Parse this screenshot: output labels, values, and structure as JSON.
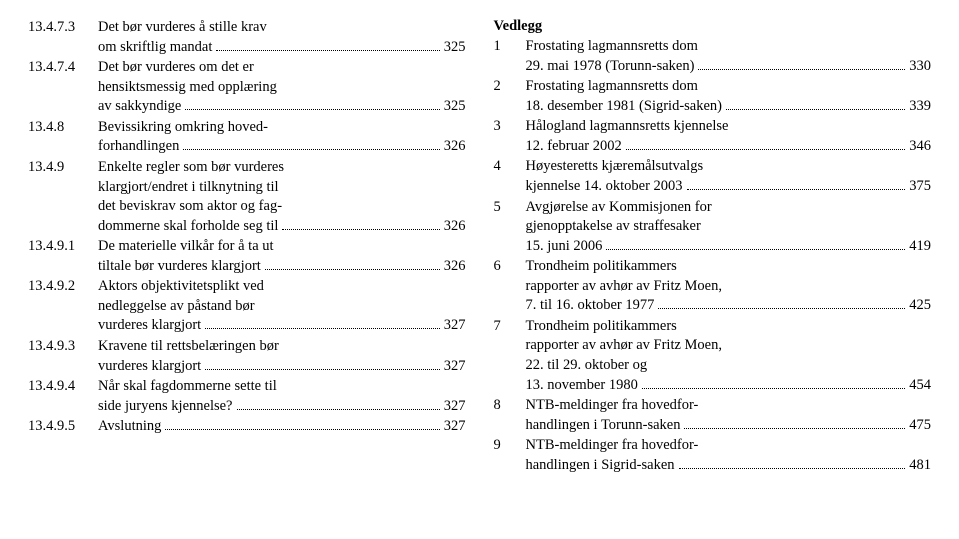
{
  "left": [
    {
      "num": "13.4.7.3",
      "lines": [
        "Det bør vurderes å stille krav",
        "om skriftlig mandat"
      ],
      "page": "325"
    },
    {
      "num": "13.4.7.4",
      "lines": [
        "Det bør vurderes om det er",
        "hensiktsmessig med opplæring",
        "av sakkyndige"
      ],
      "page": "325"
    },
    {
      "num": "13.4.8",
      "lines": [
        "Bevissikring omkring hoved-",
        "forhandlingen"
      ],
      "page": "326"
    },
    {
      "num": "13.4.9",
      "lines": [
        "Enkelte regler som bør vurderes",
        "klargjort/endret i tilknytning til",
        "det beviskrav som aktor og fag-",
        "dommerne skal forholde seg til"
      ],
      "page": "326"
    },
    {
      "num": "13.4.9.1",
      "lines": [
        "De materielle vilkår for å ta ut",
        "tiltale bør vurderes klargjort"
      ],
      "page": "326"
    },
    {
      "num": "13.4.9.2",
      "lines": [
        "Aktors objektivitetsplikt ved",
        "nedleggelse av påstand bør",
        "vurderes klargjort"
      ],
      "page": "327"
    },
    {
      "num": "13.4.9.3",
      "lines": [
        "Kravene til rettsbelæringen bør",
        "vurderes klargjort"
      ],
      "page": "327"
    },
    {
      "num": "13.4.9.4",
      "lines": [
        "Når skal fagdommerne sette til",
        "side juryens kjennelse?"
      ],
      "page": "327"
    },
    {
      "num": "13.4.9.5",
      "lines": [
        "Avslutning"
      ],
      "page": "327"
    }
  ],
  "rightHeading": "Vedlegg",
  "right": [
    {
      "num": "1",
      "lines": [
        "Frostating lagmannsretts dom",
        "29. mai 1978 (Torunn-saken)"
      ],
      "page": "330"
    },
    {
      "num": "2",
      "lines": [
        "Frostating lagmannsretts dom",
        "18. desember 1981 (Sigrid-saken)"
      ],
      "page": "339"
    },
    {
      "num": "3",
      "lines": [
        "Hålogland lagmannsretts kjennelse",
        "12. februar 2002"
      ],
      "page": "346"
    },
    {
      "num": "4",
      "lines": [
        "Høyesteretts kjæremålsutvalgs",
        "kjennelse 14. oktober 2003"
      ],
      "page": "375"
    },
    {
      "num": "5",
      "lines": [
        "Avgjørelse av Kommisjonen for",
        "gjenopptakelse av straffesaker",
        "15. juni 2006"
      ],
      "page": "419"
    },
    {
      "num": "6",
      "lines": [
        "Trondheim politikammers",
        "rapporter av avhør av Fritz Moen,",
        "7. til 16. oktober 1977"
      ],
      "page": "425"
    },
    {
      "num": "7",
      "lines": [
        "Trondheim politikammers",
        "rapporter av avhør av Fritz Moen,",
        "22. til  29. oktober og",
        "13. november 1980"
      ],
      "page": "454"
    },
    {
      "num": "8",
      "lines": [
        "NTB-meldinger fra hovedfor-",
        "handlingen i Torunn-saken"
      ],
      "page": "475"
    },
    {
      "num": "9",
      "lines": [
        "NTB-meldinger fra hovedfor-",
        "handlingen i Sigrid-saken"
      ],
      "page": "481"
    }
  ]
}
